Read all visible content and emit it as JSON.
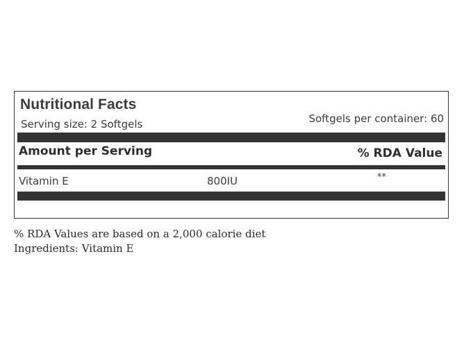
{
  "label": {
    "title": "Nutritional Facts",
    "serving_size": "Serving size: 2 Softgels",
    "per_container": "Softgels per container: 60",
    "amount_header": "Amount per Serving",
    "rda_header": "% RDA Value",
    "nutrients": [
      {
        "name": "Vitamin E",
        "amount": "800IU",
        "rda": "**"
      }
    ]
  },
  "footnotes": {
    "rda_note": "% RDA Values  are based on a 2,000 calorie diet",
    "ingredients": "Ingredients: Vitamin E"
  },
  "colors": {
    "bars": "#333333",
    "text": "#333333"
  }
}
